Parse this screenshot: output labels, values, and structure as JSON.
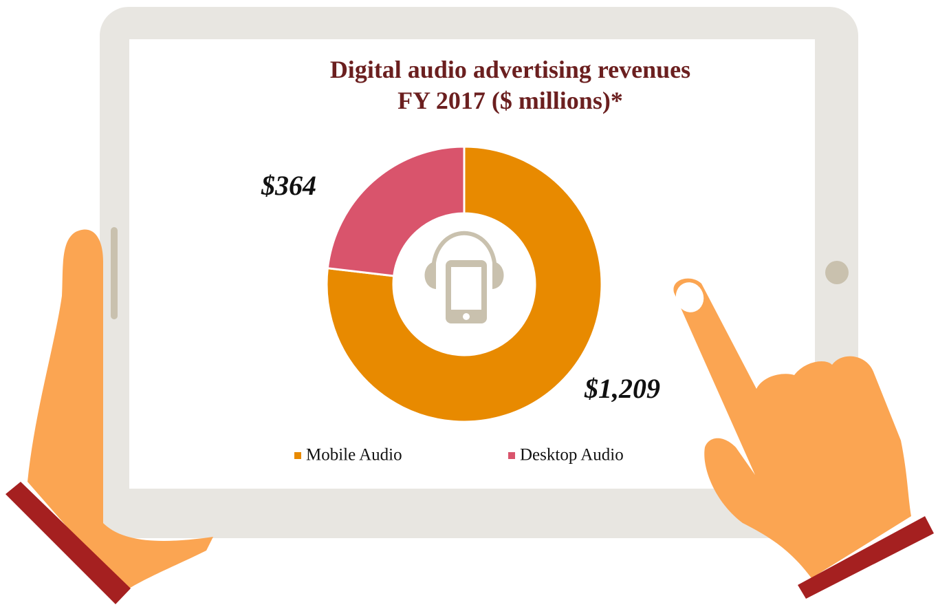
{
  "chart_data": {
    "type": "donut",
    "title": [
      "Digital audio advertising revenues",
      "FY 2017 ($ millions)*"
    ],
    "categories": [
      "Mobile Audio",
      "Desktop Audio"
    ],
    "values": [
      1209,
      364
    ],
    "value_labels": [
      "$1,209",
      "$364"
    ],
    "colors": [
      "#e88a00",
      "#d9546c"
    ]
  }
}
